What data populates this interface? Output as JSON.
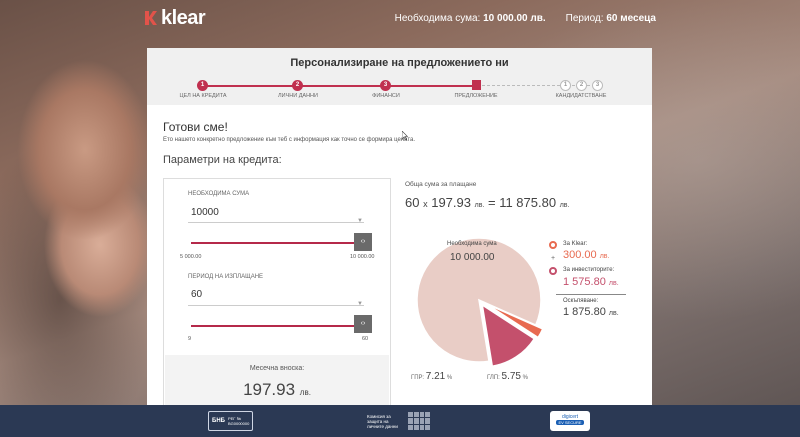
{
  "brand": {
    "name": "klear",
    "accent": "#c0304f"
  },
  "topbar": {
    "amount_label": "Необходима сума:",
    "amount_value": "10 000.00 лв.",
    "period_label": "Период:",
    "period_value": "60 месеца"
  },
  "panel": {
    "title": "Персонализиране на предложението ни",
    "steps": [
      {
        "number": "1",
        "label": "ЦЕЛ НА КРЕДИТА",
        "state": "done"
      },
      {
        "number": "2",
        "label": "ЛИЧНИ ДАННИ",
        "state": "done"
      },
      {
        "number": "3",
        "label": "ФИНАНСИ",
        "state": "done"
      },
      {
        "number": "",
        "label": "ПРЕДЛОЖЕНИЕ",
        "state": "current"
      },
      {
        "number": "1",
        "label": "",
        "state": "todo"
      },
      {
        "number": "2",
        "label": "КАНДИДАТСТВАНЕ",
        "state": "todo"
      },
      {
        "number": "3",
        "label": "",
        "state": "todo"
      }
    ]
  },
  "content": {
    "greeting": "Готови сме!",
    "greeting_sub": "Ето нашето конкретно предложение към теб с информация как точно се формира цената.",
    "params_title": "Параметри на кредита:"
  },
  "calculator": {
    "amount": {
      "label": "НЕОБХОДИМА СУМА",
      "value": "10000",
      "min": "5 000.00",
      "max": "10 000.00",
      "slider_fraction": 1.0
    },
    "period": {
      "label": "ПЕРИОД НА ИЗПЛАЩАНЕ",
      "value": "60",
      "min": "9",
      "max": "60",
      "slider_fraction": 1.0
    },
    "handle_glyph": "‹›",
    "monthly_label": "Месечна вноска:",
    "monthly_value": "197.93",
    "monthly_currency": "лв."
  },
  "summary": {
    "total_label": "Обща сума за плащане",
    "months": "60",
    "times": "x",
    "installment": "197.93",
    "currency": "лв.",
    "equals": "=",
    "total": "11 875.80"
  },
  "chart_data": {
    "type": "pie",
    "slices": [
      {
        "name": "Необходима сума",
        "value": 10000.0,
        "color": "#e9cdc6"
      },
      {
        "name": "За Klear:",
        "value": 300.0,
        "color": "#e86a50"
      },
      {
        "name": "За инвеститорите:",
        "value": 1575.8,
        "color": "#c4506c"
      }
    ],
    "center_label": "Необходима сума",
    "center_value": "10 000.00",
    "legend": [
      {
        "label": "За Klear:",
        "value": "300.00",
        "currency": "лв.",
        "color": "#e86a50"
      },
      {
        "label": "За инвеститорите:",
        "value": "1 575.80",
        "currency": "лв.",
        "color": "#c4506c"
      }
    ],
    "plus": "+",
    "remaining_label": "Оскъпяване:",
    "remaining_value": "1 875.80",
    "remaining_currency": "лв."
  },
  "rates": {
    "gpr_label": "ГПР:",
    "gpr_value": "7.21",
    "gpr_unit": "%",
    "glp_label": "ГЛП:",
    "glp_value": "5.75",
    "glp_unit": "%"
  },
  "footer": {
    "bnb_label": "БНБ",
    "bnb_reg": "РЕГ №",
    "bnb_number": "BG0000000",
    "kzld_text": "Комисия за защита на личните данни",
    "digicert_name": "digicert",
    "digicert_sub": "EV SECURE"
  }
}
